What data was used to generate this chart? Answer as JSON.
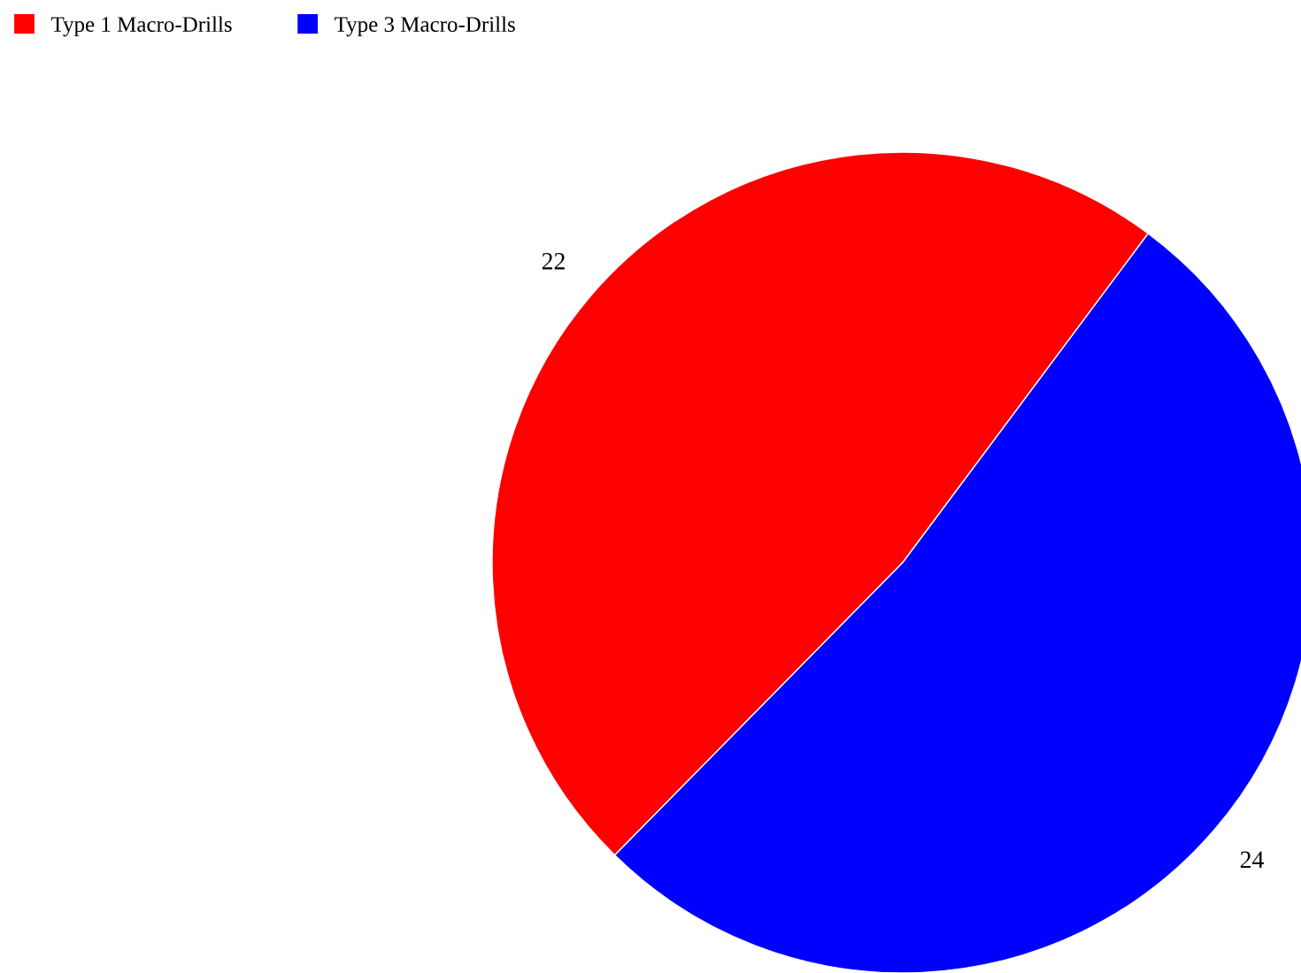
{
  "chart_data": {
    "type": "pie",
    "categories": [
      "Type 1 Macro-Drills",
      "Type 3 Macro-Drills"
    ],
    "values": [
      22,
      24
    ],
    "colors": [
      "#ff0000",
      "#0000ff"
    ],
    "data_labels": true,
    "legend": "top left"
  }
}
